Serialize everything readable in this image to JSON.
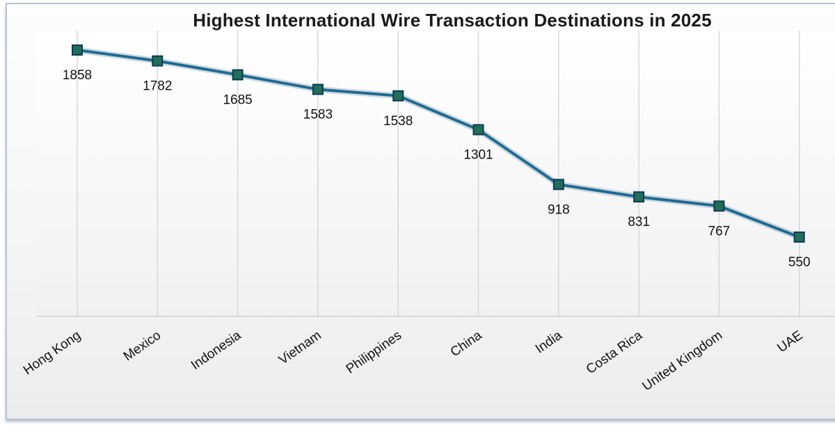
{
  "chart_data": {
    "type": "line",
    "title": "Highest International Wire Transaction Destinations in 2025",
    "categories": [
      "Hong Kong",
      "Mexico",
      "Indonesia",
      "Vietnam",
      "Philippines",
      "China",
      "India",
      "Costa Rica",
      "United Kingdom",
      "UAE"
    ],
    "series": [
      {
        "values": [
          1858,
          1782,
          1685,
          1583,
          1538,
          1301,
          918,
          831,
          767,
          550
        ]
      }
    ],
    "ylim": [
      0,
      2000
    ],
    "grid": "vertical",
    "legend": "none",
    "colors": {
      "line": "#1d6b93",
      "marker": "#1f6f5a",
      "marker_edge": "#103a4f",
      "grid": "#d7d7d7"
    }
  }
}
